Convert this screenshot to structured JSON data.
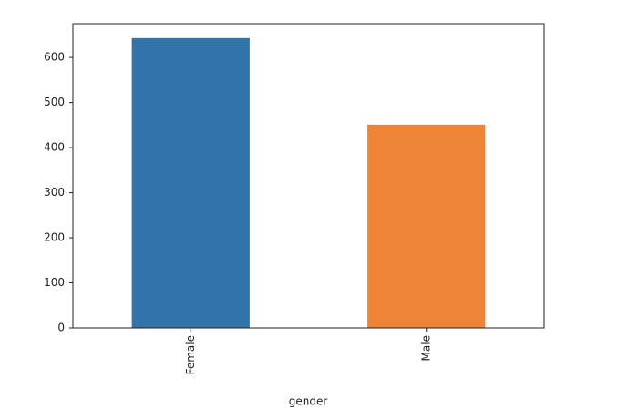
{
  "chart_data": {
    "type": "bar",
    "x_label": "gender",
    "categories": [
      "Female",
      "Male"
    ],
    "values": [
      643,
      451
    ],
    "colors": [
      "#3274a9",
      "#ee8435"
    ],
    "ylim": [
      0,
      675
    ],
    "yticks": [
      0,
      100,
      200,
      300,
      400,
      500,
      600
    ],
    "grid": false
  }
}
